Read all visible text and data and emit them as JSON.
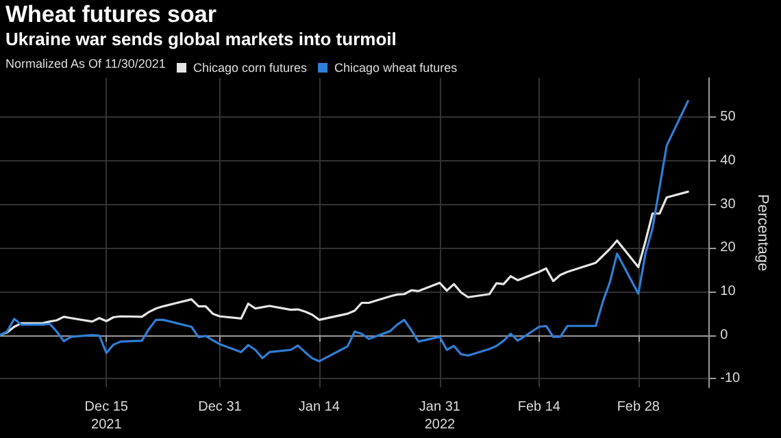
{
  "chart_data": {
    "type": "line",
    "title": "Wheat futures soar",
    "subtitle": "Ukraine war sends global markets into turmoil",
    "annotations": [
      "Normalized As Of 11/30/2021"
    ],
    "ylabel": "Percentage",
    "x": [
      "2021-11-30",
      "2021-12-01",
      "2021-12-02",
      "2021-12-03",
      "2021-12-06",
      "2021-12-07",
      "2021-12-08",
      "2021-12-09",
      "2021-12-10",
      "2021-12-13",
      "2021-12-14",
      "2021-12-15",
      "2021-12-16",
      "2021-12-17",
      "2021-12-20",
      "2021-12-21",
      "2021-12-22",
      "2021-12-23",
      "2021-12-27",
      "2021-12-28",
      "2021-12-29",
      "2021-12-30",
      "2021-12-31",
      "2022-01-03",
      "2022-01-04",
      "2022-01-05",
      "2022-01-06",
      "2022-01-07",
      "2022-01-10",
      "2022-01-11",
      "2022-01-12",
      "2022-01-13",
      "2022-01-14",
      "2022-01-18",
      "2022-01-19",
      "2022-01-20",
      "2022-01-21",
      "2022-01-24",
      "2022-01-25",
      "2022-01-26",
      "2022-01-27",
      "2022-01-28",
      "2022-01-31",
      "2022-02-01",
      "2022-02-02",
      "2022-02-03",
      "2022-02-04",
      "2022-02-07",
      "2022-02-08",
      "2022-02-09",
      "2022-02-10",
      "2022-02-11",
      "2022-02-14",
      "2022-02-15",
      "2022-02-16",
      "2022-02-17",
      "2022-02-18",
      "2022-02-22",
      "2022-02-23",
      "2022-02-24",
      "2022-02-25",
      "2022-02-28",
      "2022-03-01",
      "2022-03-02",
      "2022-03-03",
      "2022-03-04",
      "2022-03-07"
    ],
    "series": [
      {
        "name": "Chicago corn futures",
        "color": "#e6e6e6",
        "values": [
          0,
          0.6,
          1.9,
          2.7,
          2.7,
          3.1,
          3.4,
          4.2,
          3.9,
          3.1,
          3.9,
          3.2,
          4.1,
          4.3,
          4.2,
          5.3,
          6.1,
          6.6,
          8.2,
          6.6,
          6.6,
          4.9,
          4.3,
          3.8,
          7.2,
          6.1,
          6.4,
          6.7,
          5.8,
          5.9,
          5.4,
          4.7,
          3.5,
          4.9,
          5.6,
          7.4,
          7.4,
          8.9,
          9.3,
          9.4,
          10.3,
          10.1,
          12,
          10.2,
          11.7,
          9.8,
          8.7,
          9.4,
          11.9,
          11.7,
          13.5,
          12.6,
          14.5,
          15.3,
          12.4,
          13.8,
          14.5,
          16.6,
          18.2,
          19.8,
          21.7,
          15.6,
          21.5,
          27.9,
          27.9,
          31.6,
          32.9
        ]
      },
      {
        "name": "Chicago wheat futures",
        "color": "#2f7fd6",
        "values": [
          0,
          0.8,
          3.7,
          2.4,
          2.4,
          2.6,
          0.8,
          -1.4,
          -0.4,
          0,
          -0.1,
          -4.1,
          -2.2,
          -1.5,
          -1.3,
          1.4,
          3.5,
          3.5,
          1.9,
          -0.5,
          -0.2,
          -1.2,
          -2.1,
          -3.9,
          -2.3,
          -3.4,
          -5.3,
          -3.9,
          -3.4,
          -2.4,
          -3.9,
          -5.3,
          -6,
          -2.6,
          0.8,
          0.3,
          -0.9,
          0.9,
          2.4,
          3.5,
          1.1,
          -1.5,
          -0.4,
          -3.4,
          -2.5,
          -4.4,
          -4.7,
          -3.2,
          -2.5,
          -1.3,
          0.3,
          -1.3,
          1.9,
          2.1,
          -0.4,
          -0.4,
          2.1,
          2.1,
          7.7,
          12.2,
          18.7,
          9.5,
          18.7,
          24.5,
          34,
          43.5,
          53.7
        ]
      }
    ],
    "xlim": [
      "2021-11-30",
      "2022-03-10"
    ],
    "xticks": [
      {
        "value": "2021-12-15",
        "label": "Dec 15\n2021"
      },
      {
        "value": "2021-12-31",
        "label": "Dec 31"
      },
      {
        "value": "2022-01-14",
        "label": "Jan 14"
      },
      {
        "value": "2022-01-31",
        "label": "Jan 31\n2022"
      },
      {
        "value": "2022-02-14",
        "label": "Feb 14"
      },
      {
        "value": "2022-02-28",
        "label": "Feb 28"
      }
    ],
    "ylim": [
      -12,
      59
    ],
    "yticks": [
      -10,
      0,
      10,
      20,
      30,
      40,
      50
    ],
    "grid": true,
    "legend": "top left",
    "marker": "none",
    "line_style": "solid"
  }
}
